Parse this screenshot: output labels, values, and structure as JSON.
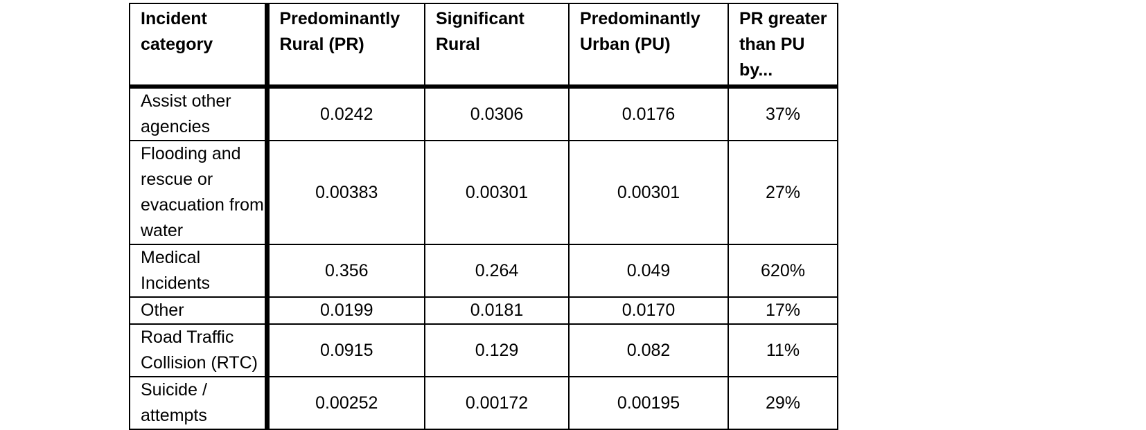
{
  "table": {
    "headers": [
      "Incident category",
      "Predominantly Rural (PR)",
      "Significant Rural",
      "Predominantly Urban (PU)",
      "PR greater than PU by..."
    ],
    "rows": [
      {
        "category": "Assist other agencies",
        "pr": "0.0242",
        "sr": "0.0306",
        "pu": "0.0176",
        "diff": "37%"
      },
      {
        "category": "Flooding and rescue or evacuation from water",
        "pr": "0.00383",
        "sr": "0.00301",
        "pu": "0.00301",
        "diff": "27%"
      },
      {
        "category": "Medical Incidents",
        "pr": "0.356",
        "sr": "0.264",
        "pu": "0.049",
        "diff": "620%"
      },
      {
        "category": "Other",
        "pr": "0.0199",
        "sr": "0.0181",
        "pu": "0.0170",
        "diff": "17%"
      },
      {
        "category": "Road Traffic Collision (RTC)",
        "pr": "0.0915",
        "sr": "0.129",
        "pu": "0.082",
        "diff": "11%"
      },
      {
        "category": "Suicide / attempts",
        "pr": "0.00252",
        "sr": "0.00172",
        "pu": "0.00195",
        "diff": "29%"
      }
    ]
  }
}
